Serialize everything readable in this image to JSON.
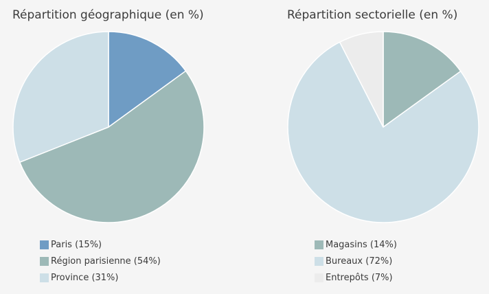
{
  "chart_data": [
    {
      "type": "pie",
      "title": "Répartition géographique (en %)",
      "categories": [
        "Paris",
        "Région parisienne",
        "Province"
      ],
      "values": [
        15,
        54,
        31
      ],
      "legend_labels": [
        "Paris (15%)",
        "Région parisienne (54%)",
        "Province (31%)"
      ],
      "colors": [
        "#6f9cc4",
        "#9db9b7",
        "#cddfe7"
      ],
      "legend_position": "bottom-left"
    },
    {
      "type": "pie",
      "title": "Répartition sectorielle (en %)",
      "categories": [
        "Magasins",
        "Bureaux",
        "Entrepôts"
      ],
      "values": [
        14,
        72,
        7
      ],
      "legend_labels": [
        "Magasins (14%)",
        "Bureaux (72%)",
        "Entrepôts (7%)"
      ],
      "colors": [
        "#9db9b7",
        "#cddfe7",
        "#ececec"
      ],
      "legend_position": "bottom-left"
    }
  ]
}
